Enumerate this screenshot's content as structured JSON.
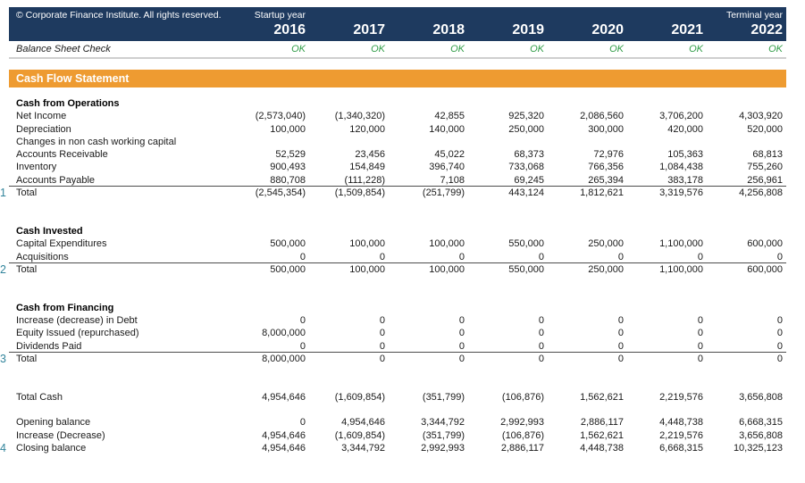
{
  "header": {
    "copyright": "© Corporate Finance Institute. All rights reserved.",
    "startup_year_label": "Startup year",
    "terminal_year_label": "Terminal year",
    "years": [
      "2016",
      "2017",
      "2018",
      "2019",
      "2020",
      "2021",
      "2022"
    ]
  },
  "balance_sheet_check": {
    "label": "Balance Sheet Check",
    "values": [
      "OK",
      "OK",
      "OK",
      "OK",
      "OK",
      "OK",
      "OK"
    ]
  },
  "banner": {
    "title": "Cash Flow Statement"
  },
  "colors": {
    "navy_header": "#1e3a5f",
    "banner_orange": "#ee9b31",
    "ok_green": "#2e9c45",
    "marker_teal": "#31849b"
  },
  "table": {
    "columns": [
      "2016",
      "2017",
      "2018",
      "2019",
      "2020",
      "2021",
      "2022"
    ],
    "rows": [
      {
        "type": "section",
        "label": "Cash from Operations"
      },
      {
        "type": "item",
        "label": "Net Income",
        "values": [
          "(2,573,040)",
          "(1,340,320)",
          "42,855",
          "925,320",
          "2,086,560",
          "3,706,200",
          "4,303,920"
        ]
      },
      {
        "type": "item",
        "label": "Depreciation",
        "values": [
          "100,000",
          "120,000",
          "140,000",
          "250,000",
          "300,000",
          "420,000",
          "520,000"
        ]
      },
      {
        "type": "item",
        "label": "Changes in non cash working capital",
        "values": [
          "",
          "",
          "",
          "",
          "",
          "",
          ""
        ]
      },
      {
        "type": "item",
        "label": "Accounts Receivable",
        "values": [
          "52,529",
          "23,456",
          "45,022",
          "68,373",
          "72,976",
          "105,363",
          "68,813"
        ]
      },
      {
        "type": "item",
        "label": "Inventory",
        "values": [
          "900,493",
          "154,849",
          "396,740",
          "733,068",
          "766,356",
          "1,084,438",
          "755,260"
        ]
      },
      {
        "type": "item",
        "label": "Accounts Payable",
        "values": [
          "880,708",
          "(111,228)",
          "7,108",
          "69,245",
          "265,394",
          "383,178",
          "256,961"
        ],
        "underline": true
      },
      {
        "type": "total",
        "label": "Total",
        "marker": "1",
        "values": [
          "(2,545,354)",
          "(1,509,854)",
          "(251,799)",
          "443,124",
          "1,812,621",
          "3,319,576",
          "4,256,808"
        ]
      },
      {
        "type": "blank"
      },
      {
        "type": "blank"
      },
      {
        "type": "section",
        "label": "Cash Invested"
      },
      {
        "type": "item",
        "label": "Capital Expenditures",
        "values": [
          "500,000",
          "100,000",
          "100,000",
          "550,000",
          "250,000",
          "1,100,000",
          "600,000"
        ]
      },
      {
        "type": "item",
        "label": "Acquisitions",
        "values": [
          "0",
          "0",
          "0",
          "0",
          "0",
          "0",
          "0"
        ],
        "underline": true
      },
      {
        "type": "total",
        "label": "Total",
        "marker": "2",
        "values": [
          "500,000",
          "100,000",
          "100,000",
          "550,000",
          "250,000",
          "1,100,000",
          "600,000"
        ]
      },
      {
        "type": "blank"
      },
      {
        "type": "blank"
      },
      {
        "type": "section",
        "label": "Cash from Financing"
      },
      {
        "type": "item",
        "label": "Increase (decrease) in Debt",
        "values": [
          "0",
          "0",
          "0",
          "0",
          "0",
          "0",
          "0"
        ]
      },
      {
        "type": "item",
        "label": "Equity Issued (repurchased)",
        "values": [
          "8,000,000",
          "0",
          "0",
          "0",
          "0",
          "0",
          "0"
        ]
      },
      {
        "type": "item",
        "label": "Dividends Paid",
        "values": [
          "0",
          "0",
          "0",
          "0",
          "0",
          "0",
          "0"
        ],
        "underline": true
      },
      {
        "type": "total",
        "label": "Total",
        "marker": "3",
        "values": [
          "8,000,000",
          "0",
          "0",
          "0",
          "0",
          "0",
          "0"
        ]
      },
      {
        "type": "blank"
      },
      {
        "type": "blank"
      },
      {
        "type": "item",
        "label": "Total Cash",
        "values": [
          "4,954,646",
          "(1,609,854)",
          "(351,799)",
          "(106,876)",
          "1,562,621",
          "2,219,576",
          "3,656,808"
        ]
      },
      {
        "type": "blank"
      },
      {
        "type": "item",
        "label": "Opening balance",
        "values": [
          "0",
          "4,954,646",
          "3,344,792",
          "2,992,993",
          "2,886,117",
          "4,448,738",
          "6,668,315"
        ]
      },
      {
        "type": "item",
        "label": "Increase (Decrease)",
        "values": [
          "4,954,646",
          "(1,609,854)",
          "(351,799)",
          "(106,876)",
          "1,562,621",
          "2,219,576",
          "3,656,808"
        ]
      },
      {
        "type": "item",
        "label": "Closing balance",
        "marker": "4",
        "values": [
          "4,954,646",
          "3,344,792",
          "2,992,993",
          "2,886,117",
          "4,448,738",
          "6,668,315",
          "10,325,123"
        ]
      }
    ]
  }
}
